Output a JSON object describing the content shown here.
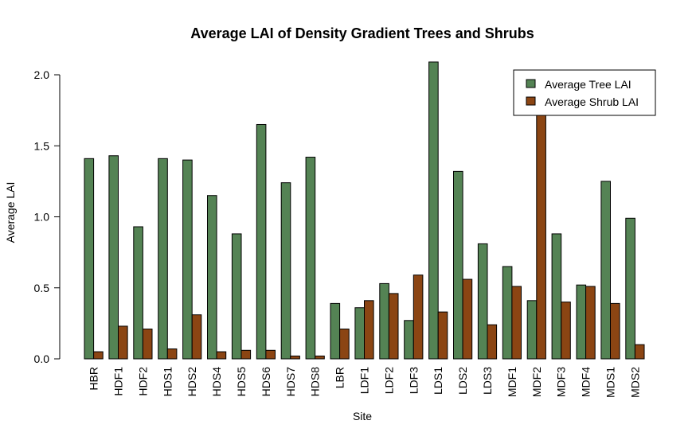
{
  "chart_data": {
    "type": "bar",
    "title": "Average LAI of Density Gradient Trees and Shrubs",
    "xlabel": "Site",
    "ylabel": "Average LAI",
    "ylim": [
      0,
      2.0
    ],
    "yticks": [
      "0.0",
      "0.5",
      "1.0",
      "1.5",
      "2.0"
    ],
    "ytick_values": [
      0,
      0.5,
      1.0,
      1.5,
      2.0
    ],
    "categories": [
      "HBR",
      "HDF1",
      "HDF2",
      "HDS1",
      "HDS2",
      "HDS4",
      "HDS5",
      "HDS6",
      "HDS7",
      "HDS8",
      "LBR",
      "LDF1",
      "LDF2",
      "LDF3",
      "LDS1",
      "LDS2",
      "LDS3",
      "MDF1",
      "MDF2",
      "MDF3",
      "MDF4",
      "MDS1",
      "MDS2"
    ],
    "series": [
      {
        "name": "Average Tree LAI",
        "color": "#548354",
        "values": [
          1.41,
          1.43,
          0.93,
          1.41,
          1.4,
          1.15,
          0.88,
          1.65,
          1.24,
          1.42,
          0.39,
          0.36,
          0.53,
          0.27,
          2.09,
          1.32,
          0.81,
          0.65,
          0.41,
          0.88,
          0.52,
          1.25,
          0.99
        ]
      },
      {
        "name": "Average Shrub LAI",
        "color": "#8b4513",
        "values": [
          0.05,
          0.23,
          0.21,
          0.07,
          0.31,
          0.05,
          0.06,
          0.06,
          0.02,
          0.02,
          0.21,
          0.41,
          0.46,
          0.59,
          0.33,
          0.56,
          0.24,
          0.51,
          1.72,
          0.4,
          0.51,
          0.39,
          0.1
        ]
      }
    ],
    "grid": false,
    "legend_position": "top-right"
  }
}
